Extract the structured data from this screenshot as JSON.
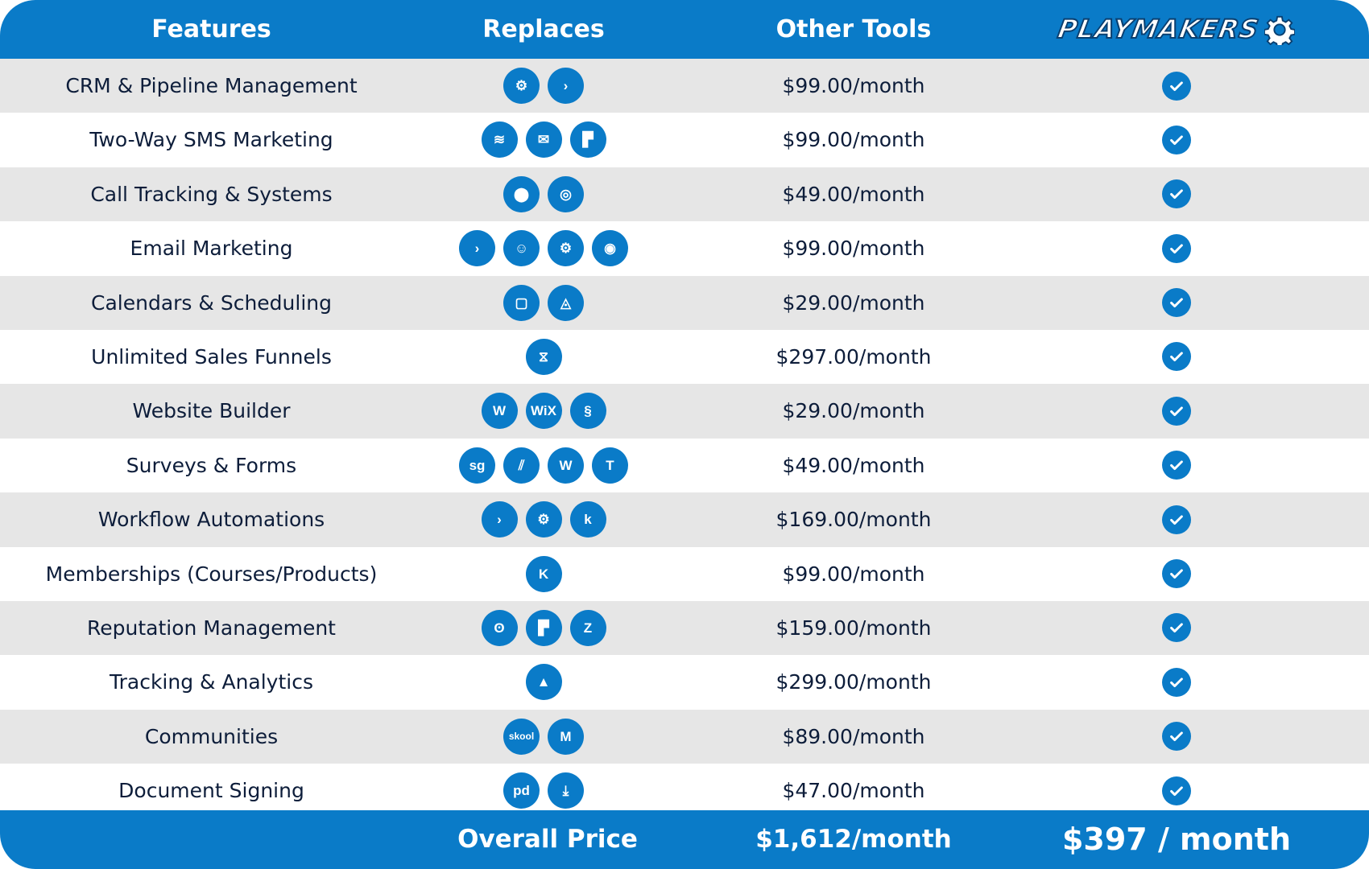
{
  "header": {
    "features": "Features",
    "replaces": "Replaces",
    "other_tools": "Other Tools",
    "brand": "PLAYMAKERS"
  },
  "rows": [
    {
      "feature": "CRM & Pipeline Management",
      "price": "$99.00/month",
      "icons": [
        {
          "name": "hubspot-icon",
          "glyph": "⚙"
        },
        {
          "name": "activecampaign-icon",
          "glyph": "›"
        }
      ]
    },
    {
      "feature": "Two-Way SMS Marketing",
      "price": "$99.00/month",
      "icons": [
        {
          "name": "layers-icon",
          "glyph": "≋"
        },
        {
          "name": "mail-icon",
          "glyph": "✉"
        },
        {
          "name": "podium-icon",
          "glyph": "▛"
        }
      ]
    },
    {
      "feature": "Call Tracking & Systems",
      "price": "$49.00/month",
      "icons": [
        {
          "name": "location-pin-icon",
          "glyph": "⬤"
        },
        {
          "name": "callrail-icon",
          "glyph": "◎"
        }
      ]
    },
    {
      "feature": "Email Marketing",
      "price": "$99.00/month",
      "icons": [
        {
          "name": "activecampaign-icon",
          "glyph": "›"
        },
        {
          "name": "mailchimp-icon",
          "glyph": "☺"
        },
        {
          "name": "hubspot-icon",
          "glyph": "⚙"
        },
        {
          "name": "constant-contact-icon",
          "glyph": "◉"
        }
      ]
    },
    {
      "feature": "Calendars & Scheduling",
      "price": "$29.00/month",
      "icons": [
        {
          "name": "calendly-icon",
          "glyph": "▢"
        },
        {
          "name": "acuity-icon",
          "glyph": "◬"
        }
      ]
    },
    {
      "feature": "Unlimited Sales Funnels",
      "price": "$297.00/month",
      "icons": [
        {
          "name": "clickfunnels-icon",
          "glyph": "⧖"
        }
      ]
    },
    {
      "feature": "Website Builder",
      "price": "$29.00/month",
      "icons": [
        {
          "name": "wordpress-icon",
          "glyph": "W"
        },
        {
          "name": "wix-icon",
          "glyph": "WiX"
        },
        {
          "name": "squarespace-icon",
          "glyph": "§"
        }
      ]
    },
    {
      "feature": "Surveys & Forms",
      "price": "$49.00/month",
      "icons": [
        {
          "name": "surveygizmo-icon",
          "glyph": "sg"
        },
        {
          "name": "jotform-icon",
          "glyph": "⫽"
        },
        {
          "name": "wufoo-icon",
          "glyph": "W"
        },
        {
          "name": "typeform-icon",
          "glyph": "T"
        }
      ]
    },
    {
      "feature": "Workflow Automations",
      "price": "$169.00/month",
      "icons": [
        {
          "name": "activecampaign-icon",
          "glyph": "›"
        },
        {
          "name": "hubspot-icon",
          "glyph": "⚙"
        },
        {
          "name": "keap-icon",
          "glyph": "k"
        }
      ]
    },
    {
      "feature": "Memberships (Courses/Products)",
      "price": "$99.00/month",
      "icons": [
        {
          "name": "kajabi-icon",
          "glyph": "K"
        }
      ]
    },
    {
      "feature": "Reputation Management",
      "price": "$159.00/month",
      "icons": [
        {
          "name": "birdeye-icon",
          "glyph": "ʘ"
        },
        {
          "name": "podium-icon",
          "glyph": "▛"
        },
        {
          "name": "yext-icon",
          "glyph": "Z"
        }
      ]
    },
    {
      "feature": "Tracking & Analytics",
      "price": "$299.00/month",
      "icons": [
        {
          "name": "analytics-icon",
          "glyph": "▲"
        }
      ]
    },
    {
      "feature": "Communities",
      "price": "$89.00/month",
      "icons": [
        {
          "name": "skool-icon",
          "glyph": "skool"
        },
        {
          "name": "mighty-networks-icon",
          "glyph": "M"
        }
      ]
    },
    {
      "feature": "Document Signing",
      "price": "$47.00/month",
      "icons": [
        {
          "name": "pandadoc-icon",
          "glyph": "pd"
        },
        {
          "name": "docusign-icon",
          "glyph": "⤓"
        }
      ]
    }
  ],
  "footer": {
    "overall_label": "Overall Price",
    "other_total": "$1,612/month",
    "playmakers_total": "$397 / month"
  },
  "colors": {
    "brand_blue": "#0a7bc8",
    "row_shade": "#e6e6e6",
    "text_dark": "#0d1d3a"
  }
}
